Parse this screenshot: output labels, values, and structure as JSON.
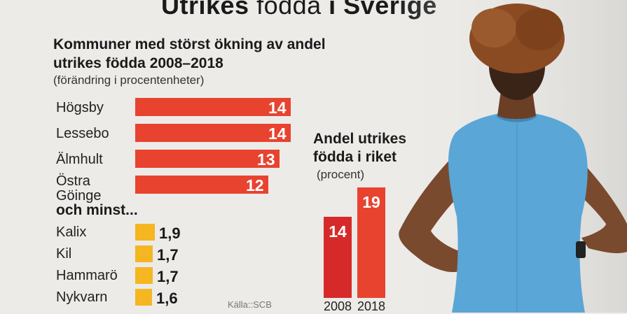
{
  "title": {
    "bold1": "Utrikes",
    "light": " födda ",
    "bold2": "i Sverige"
  },
  "chart_data": [
    {
      "type": "bar",
      "orientation": "horizontal",
      "title": "Kommuner med störst ökning av andel utrikes födda 2008–2018",
      "unit_note": "(förändring i procentenheter)",
      "categories": [
        "Högsby",
        "Lessebo",
        "Älmhult",
        "Östra Göinge"
      ],
      "values": [
        14,
        14,
        13,
        12
      ],
      "value_labels": [
        "14",
        "14",
        "13",
        "12"
      ],
      "color": "#e8432f",
      "xlim": [
        0,
        14
      ]
    },
    {
      "type": "bar",
      "orientation": "horizontal",
      "title": "och minst...",
      "categories": [
        "Kalix",
        "Kil",
        "Hammarö",
        "Nykvarn"
      ],
      "values": [
        1.9,
        1.7,
        1.7,
        1.6
      ],
      "value_labels": [
        "1,9",
        "1,7",
        "1,7",
        "1,6"
      ],
      "color": "#f5b622"
    },
    {
      "type": "bar",
      "orientation": "vertical",
      "title": "Andel utrikes födda i riket",
      "unit_note": "(procent)",
      "categories": [
        "2008",
        "2018"
      ],
      "values": [
        14,
        19
      ],
      "value_labels": [
        "14",
        "19"
      ],
      "colors": [
        "#d62a2a",
        "#e8432f"
      ]
    }
  ],
  "source": "Källa::SCB",
  "photo": {
    "icon": "nurse-photo-icon",
    "scrub_color": "#5aa6d6",
    "skin_color": "#7a4a2e",
    "hair_color": "#8a4a22"
  }
}
